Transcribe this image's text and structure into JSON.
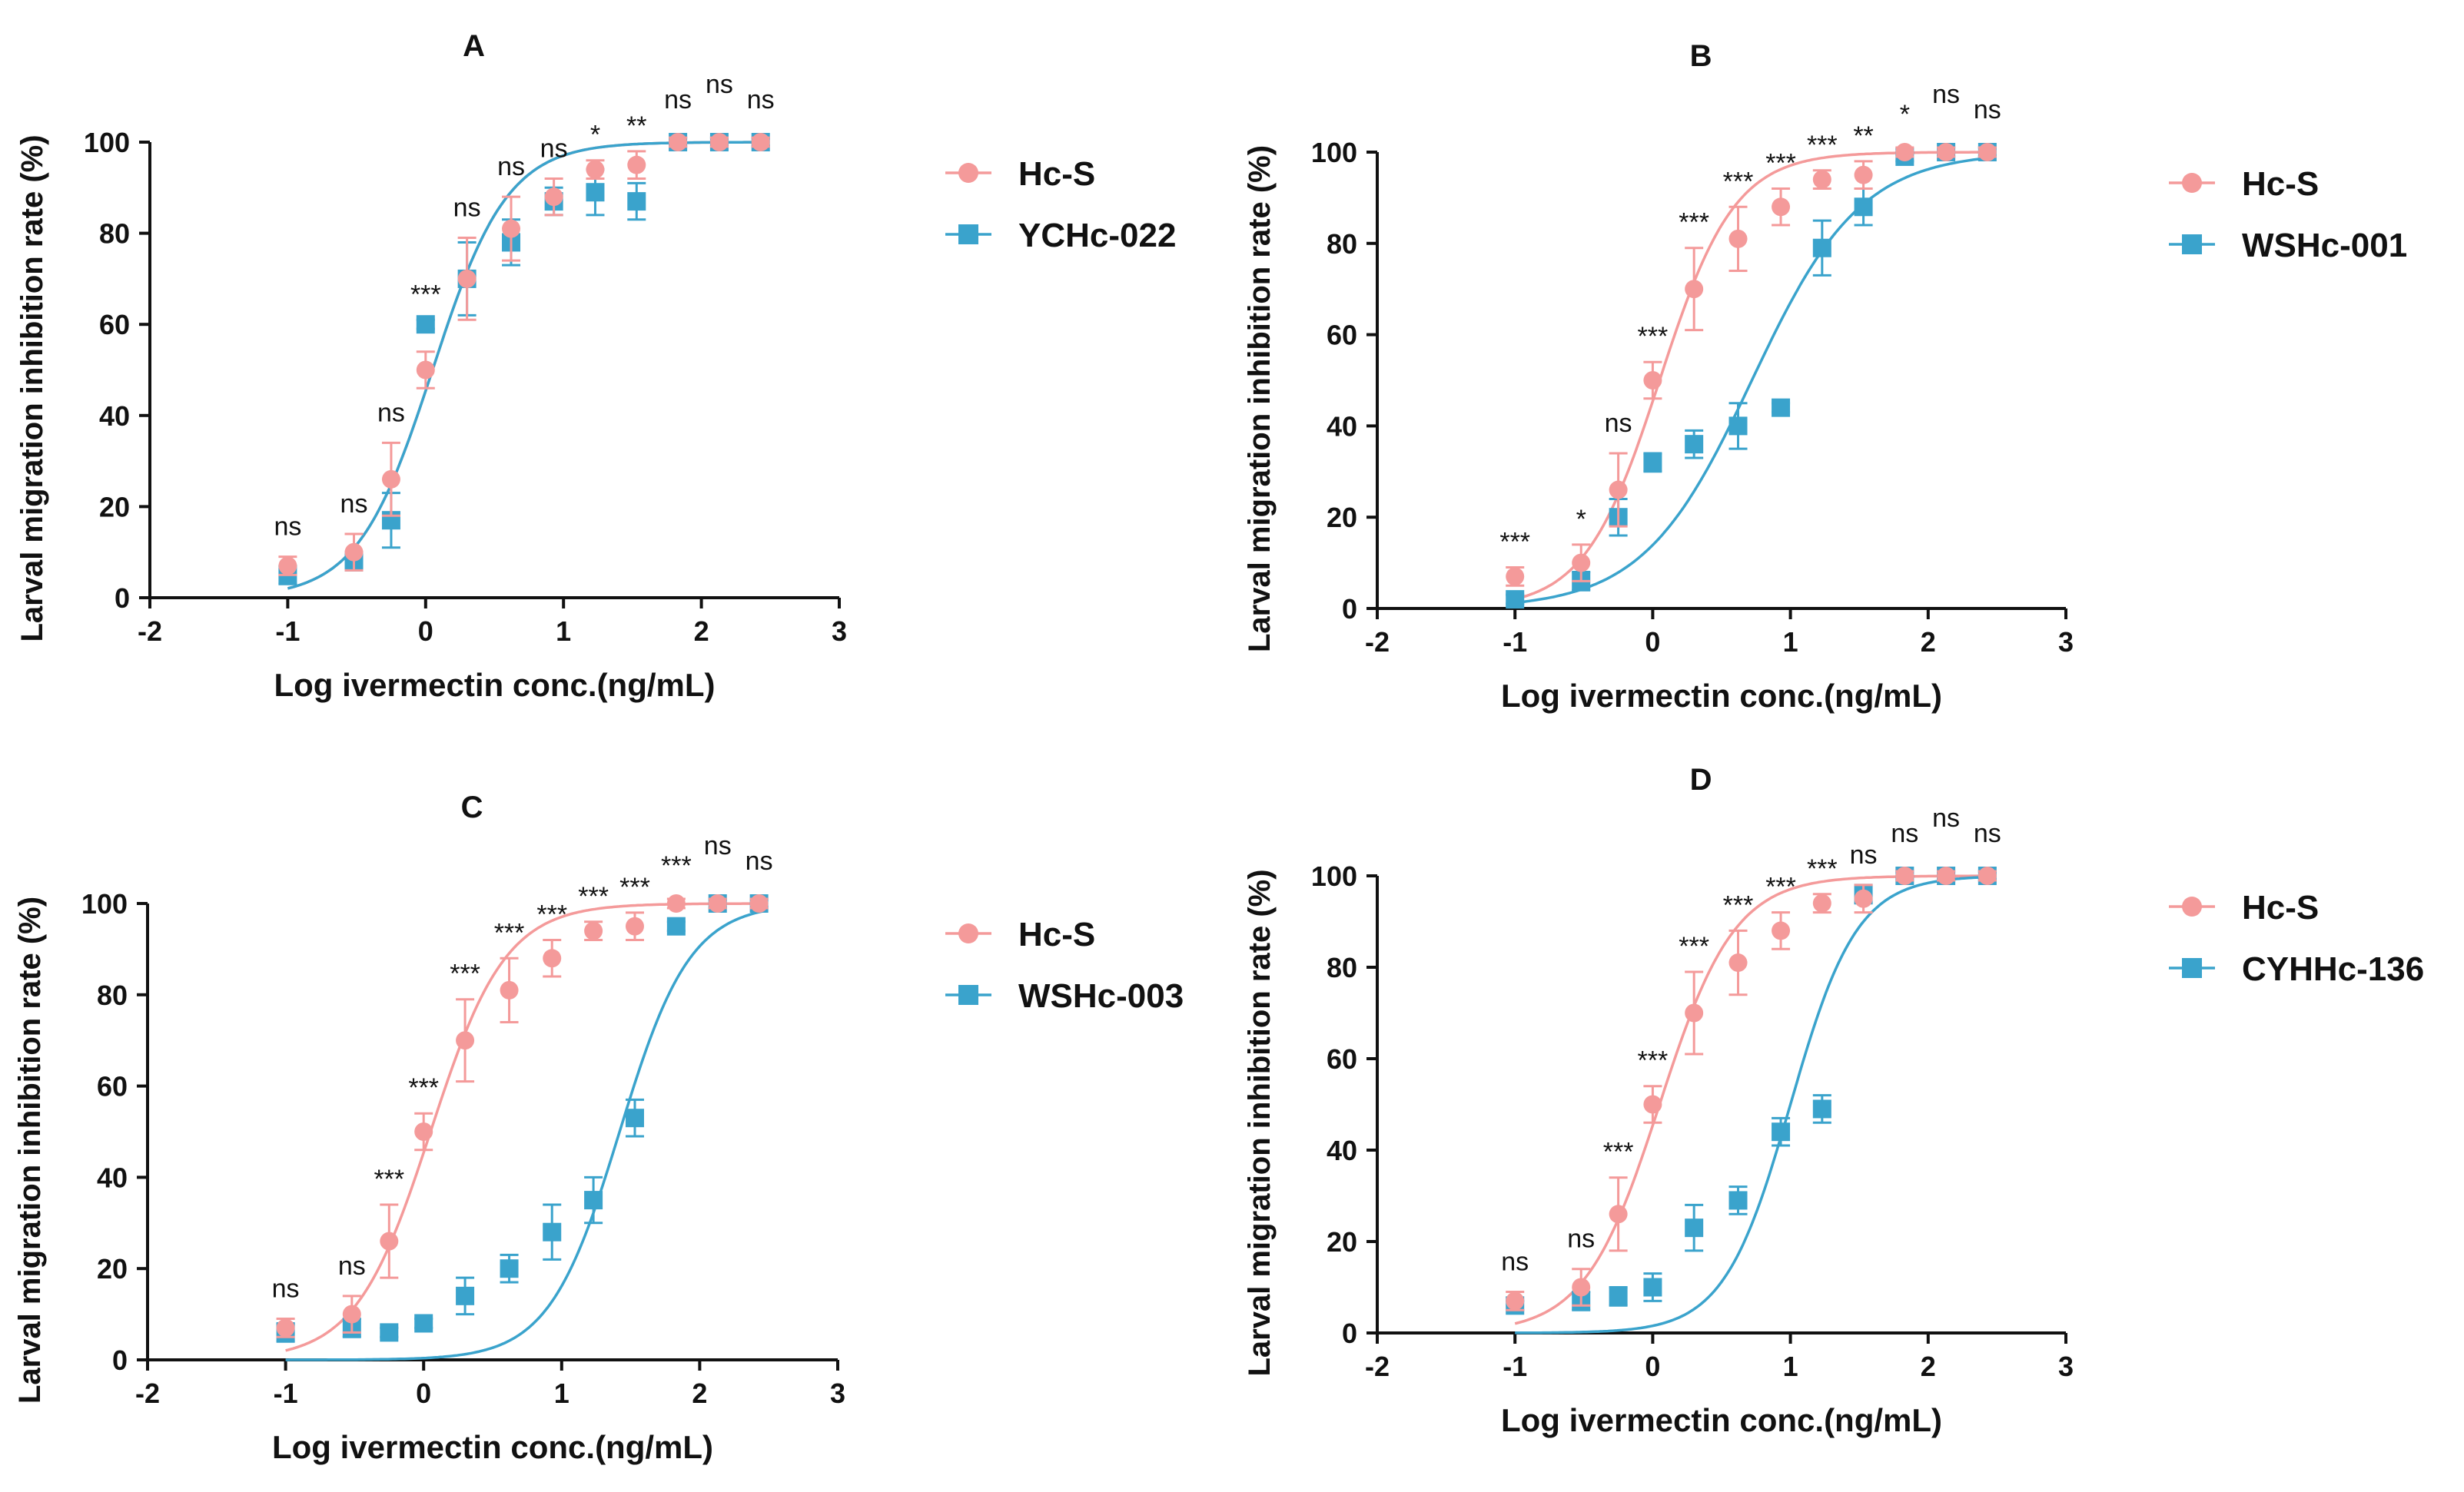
{
  "figure": {
    "y_axis_label": "Larval migration inhibition rate (%)",
    "x_axis_label": "Log ivermectin conc.(ng/mL)"
  },
  "colors": {
    "reference": "#f49a9a",
    "comparison": "#3aa3cc"
  },
  "chart_data": [
    {
      "panel": "A",
      "type": "scatter",
      "title": "A",
      "xlabel": "Log ivermectin conc.(ng/mL)",
      "ylabel": "Larval migration inhibition rate (%)",
      "xlim": [
        -2,
        3
      ],
      "ylim": [
        0,
        100
      ],
      "x_ticks": [
        -2,
        -1,
        0,
        1,
        2,
        3
      ],
      "y_ticks": [
        0,
        20,
        40,
        60,
        80,
        100
      ],
      "legend_position": "right",
      "x": [
        -1,
        -0.52,
        -0.25,
        0,
        0.3,
        0.62,
        0.93,
        1.23,
        1.53,
        1.83,
        2.13,
        2.43
      ],
      "series": [
        {
          "name": "Hc-S",
          "marker": "circle",
          "values": [
            7,
            10,
            26,
            50,
            70,
            81,
            88,
            94,
            95,
            100,
            100,
            100
          ],
          "errors": [
            2,
            4,
            8,
            4,
            9,
            7,
            4,
            2,
            3,
            1,
            1,
            1
          ],
          "fit_ec50_log": 0.05,
          "fit_hill": 1.6
        },
        {
          "name": "YCHc-022",
          "marker": "square",
          "values": [
            5,
            8,
            17,
            60,
            70,
            78,
            87,
            89,
            87,
            100,
            100,
            100
          ],
          "errors": [
            2,
            2,
            6,
            1,
            8,
            5,
            3,
            5,
            4,
            1,
            1,
            1
          ],
          "fit_ec50_log": 0.05,
          "fit_hill": 1.6
        }
      ],
      "significance": [
        "ns",
        "ns",
        "ns",
        "***",
        "ns",
        "ns",
        "ns",
        "*",
        "**",
        "ns",
        "ns",
        "ns"
      ]
    },
    {
      "panel": "B",
      "type": "scatter",
      "title": "B",
      "xlabel": "Log ivermectin conc.(ng/mL)",
      "ylabel": "Larval migration inhibition rate (%)",
      "xlim": [
        -2,
        3
      ],
      "ylim": [
        0,
        100
      ],
      "x_ticks": [
        -2,
        -1,
        0,
        1,
        2,
        3
      ],
      "y_ticks": [
        0,
        20,
        40,
        60,
        80,
        100
      ],
      "legend_position": "right",
      "x": [
        -1,
        -0.52,
        -0.25,
        0,
        0.3,
        0.62,
        0.93,
        1.23,
        1.53,
        1.83,
        2.13,
        2.43
      ],
      "series": [
        {
          "name": "Hc-S",
          "marker": "circle",
          "values": [
            7,
            10,
            26,
            50,
            70,
            81,
            88,
            94,
            95,
            100,
            100,
            100
          ],
          "errors": [
            2,
            4,
            8,
            4,
            9,
            7,
            4,
            2,
            3,
            1,
            1,
            1
          ],
          "fit_ec50_log": 0.05,
          "fit_hill": 1.6
        },
        {
          "name": "WSHc-001",
          "marker": "square",
          "values": [
            2,
            6,
            20,
            32,
            36,
            40,
            44,
            79,
            88,
            99,
            100,
            100
          ],
          "errors": [
            1,
            2,
            4,
            2,
            3,
            5,
            1,
            6,
            4,
            1,
            1,
            1
          ],
          "fit_ec50_log": 0.72,
          "fit_hill": 1.1
        }
      ],
      "significance": [
        "***",
        "*",
        "ns",
        "***",
        "***",
        "***",
        "***",
        "***",
        "**",
        "*",
        "ns",
        "ns"
      ]
    },
    {
      "panel": "C",
      "type": "scatter",
      "title": "C",
      "xlabel": "Log ivermectin conc.(ng/mL)",
      "ylabel": "Larval migration inhibition rate (%)",
      "xlim": [
        -2,
        3
      ],
      "ylim": [
        0,
        100
      ],
      "x_ticks": [
        -2,
        -1,
        0,
        1,
        2,
        3
      ],
      "y_ticks": [
        0,
        20,
        40,
        60,
        80,
        100
      ],
      "legend_position": "right",
      "x": [
        -1,
        -0.52,
        -0.25,
        0,
        0.3,
        0.62,
        0.93,
        1.23,
        1.53,
        1.83,
        2.13,
        2.43
      ],
      "series": [
        {
          "name": "Hc-S",
          "marker": "circle",
          "values": [
            7,
            10,
            26,
            50,
            70,
            81,
            88,
            94,
            95,
            100,
            100,
            100
          ],
          "errors": [
            2,
            4,
            8,
            4,
            9,
            7,
            4,
            2,
            3,
            1,
            1,
            1
          ],
          "fit_ec50_log": 0.05,
          "fit_hill": 1.6
        },
        {
          "name": "WSHc-003",
          "marker": "square",
          "values": [
            6,
            7,
            6,
            8,
            14,
            20,
            28,
            35,
            53,
            95,
            100,
            100
          ],
          "errors": [
            2,
            2,
            1,
            1,
            4,
            3,
            6,
            5,
            4,
            1,
            1,
            1
          ],
          "fit_ec50_log": 1.42,
          "fit_hill": 1.7
        }
      ],
      "significance": [
        "ns",
        "ns",
        "***",
        "***",
        "***",
        "***",
        "***",
        "***",
        "***",
        "***",
        "ns",
        "ns"
      ]
    },
    {
      "panel": "D",
      "type": "scatter",
      "title": "D",
      "xlabel": "Log ivermectin conc.(ng/mL)",
      "ylabel": "Larval migration inhibition rate (%)",
      "xlim": [
        -2,
        3
      ],
      "ylim": [
        0,
        100
      ],
      "x_ticks": [
        -2,
        -1,
        0,
        1,
        2,
        3
      ],
      "y_ticks": [
        0,
        20,
        40,
        60,
        80,
        100
      ],
      "legend_position": "right",
      "x": [
        -1,
        -0.52,
        -0.25,
        0,
        0.3,
        0.62,
        0.93,
        1.23,
        1.53,
        1.83,
        2.13,
        2.43
      ],
      "series": [
        {
          "name": "Hc-S",
          "marker": "circle",
          "values": [
            7,
            10,
            26,
            50,
            70,
            81,
            88,
            94,
            95,
            100,
            100,
            100
          ],
          "errors": [
            2,
            4,
            8,
            4,
            9,
            7,
            4,
            2,
            3,
            1,
            1,
            1
          ],
          "fit_ec50_log": 0.05,
          "fit_hill": 1.6
        },
        {
          "name": "CYHHc-136",
          "marker": "square",
          "values": [
            6,
            7,
            8,
            10,
            23,
            29,
            44,
            49,
            96,
            100,
            100,
            100
          ],
          "errors": [
            1,
            2,
            2,
            3,
            5,
            3,
            3,
            3,
            2,
            1,
            1,
            1
          ],
          "fit_ec50_log": 1.0,
          "fit_hill": 1.8
        }
      ],
      "significance": [
        "ns",
        "ns",
        "***",
        "***",
        "***",
        "***",
        "***",
        "***",
        "ns",
        "ns",
        "ns",
        "ns"
      ]
    }
  ]
}
